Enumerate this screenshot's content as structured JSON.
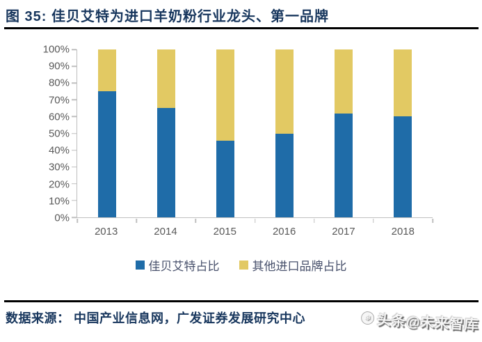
{
  "title": {
    "label": "图 35: 佳贝艾特为进口羊奶粉行业龙头、第一品牌"
  },
  "chart_data": {
    "type": "bar",
    "stacked": true,
    "title": "",
    "xlabel": "",
    "ylabel": "",
    "categories": [
      "2013",
      "2014",
      "2015",
      "2016",
      "2017",
      "2018"
    ],
    "series": [
      {
        "name": "佳贝艾特占比",
        "color": "#1F6CA8",
        "values": [
          75,
          65,
          45.5,
          50,
          62,
          60
        ]
      },
      {
        "name": "其他进口品牌占比",
        "color": "#E2C963",
        "values": [
          25,
          35,
          54.5,
          50,
          38,
          40
        ]
      }
    ],
    "ylim": [
      0,
      100
    ],
    "yticks": [
      "100%",
      "90%",
      "80%",
      "70%",
      "60%",
      "50%",
      "40%",
      "30%",
      "20%",
      "10%",
      "0%"
    ],
    "unit": "percent",
    "grid": false,
    "legend_position": "bottom"
  },
  "footer": {
    "source": "数据来源： 中国产业信息网，广发证券发展研究中心"
  },
  "watermark": {
    "label": "头条@未来智库",
    "logo_glyph": "❅"
  },
  "colors": {
    "title_navy": "#17365D",
    "bar_blue": "#1F6CA8",
    "bar_gold": "#E2C963",
    "axis_text": "#595959",
    "axis_line": "#BFBFBF",
    "rule_black": "#000000"
  }
}
